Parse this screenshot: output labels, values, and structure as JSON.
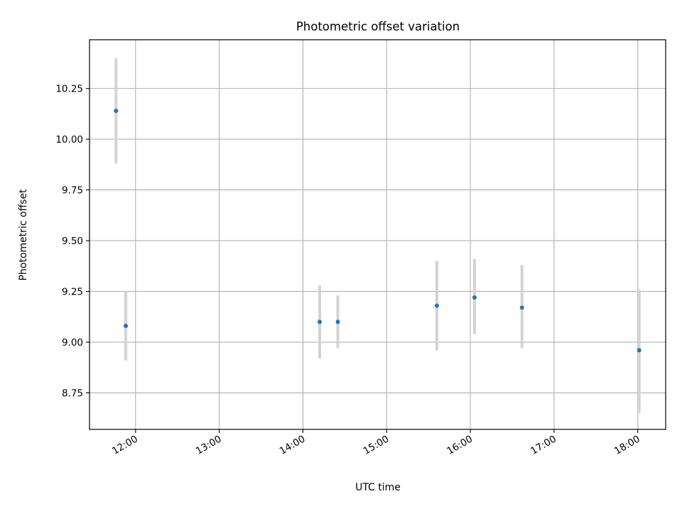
{
  "chart_data": {
    "type": "scatter",
    "title": "Photometric offset variation",
    "xlabel": "UTC time",
    "ylabel": "Photometric offset",
    "xlim": [
      "11:27",
      "18:20"
    ],
    "ylim": [
      8.57,
      10.49
    ],
    "x_ticks": [
      "12:00",
      "13:00",
      "14:00",
      "15:00",
      "16:00",
      "17:00",
      "18:00"
    ],
    "y_ticks": [
      "8.75",
      "9.00",
      "9.25",
      "9.50",
      "9.75",
      "10.00",
      "10.25"
    ],
    "grid": true,
    "marker_color": "#1f77b4",
    "errorbar_color": "#d3d3d3",
    "series": [
      {
        "points": [
          {
            "x": "11:46",
            "y": 10.14,
            "ylow": 9.88,
            "yhigh": 10.4
          },
          {
            "x": "11:53",
            "y": 9.08,
            "ylow": 8.91,
            "yhigh": 9.25
          },
          {
            "x": "14:12",
            "y": 9.1,
            "ylow": 8.92,
            "yhigh": 9.28
          },
          {
            "x": "14:25",
            "y": 9.1,
            "ylow": 8.97,
            "yhigh": 9.23
          },
          {
            "x": "15:36",
            "y": 9.18,
            "ylow": 8.96,
            "yhigh": 9.4
          },
          {
            "x": "16:03",
            "y": 9.22,
            "ylow": 9.04,
            "yhigh": 9.41
          },
          {
            "x": "16:37",
            "y": 9.17,
            "ylow": 8.97,
            "yhigh": 9.38
          },
          {
            "x": "18:01",
            "y": 8.96,
            "ylow": 8.65,
            "yhigh": 9.26
          }
        ]
      }
    ]
  }
}
